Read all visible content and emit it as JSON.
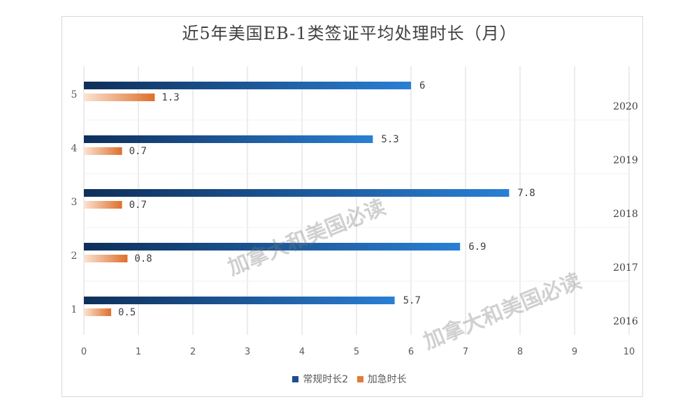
{
  "chart_data": {
    "type": "bar",
    "orientation": "horizontal",
    "title": "近5年美国EB-1类签证平均处理时长（月）",
    "categories": [
      "1",
      "2",
      "3",
      "4",
      "5"
    ],
    "secondary_categories": [
      "2016",
      "2017",
      "2018",
      "2019",
      "2020"
    ],
    "series": [
      {
        "name": "常规时长2",
        "values": [
          5.7,
          6.9,
          7.8,
          5.3,
          6
        ],
        "labels": [
          "5.7",
          "6.9",
          "7.8",
          "5.3",
          "6"
        ],
        "color": "#1f5fa6"
      },
      {
        "name": "加急时长",
        "values": [
          0.5,
          0.8,
          0.7,
          0.7,
          1.3
        ],
        "labels": [
          "0.5",
          "0.8",
          "0.7",
          "0.7",
          "1.3"
        ],
        "color": "#e07b39"
      }
    ],
    "xlim": [
      0,
      10
    ],
    "xticks": [
      "0",
      "1",
      "2",
      "3",
      "4",
      "5",
      "6",
      "7",
      "8",
      "9",
      "10"
    ],
    "grid": true,
    "legend_position": "bottom"
  },
  "watermark": {
    "text": "加拿大和美国必读"
  }
}
